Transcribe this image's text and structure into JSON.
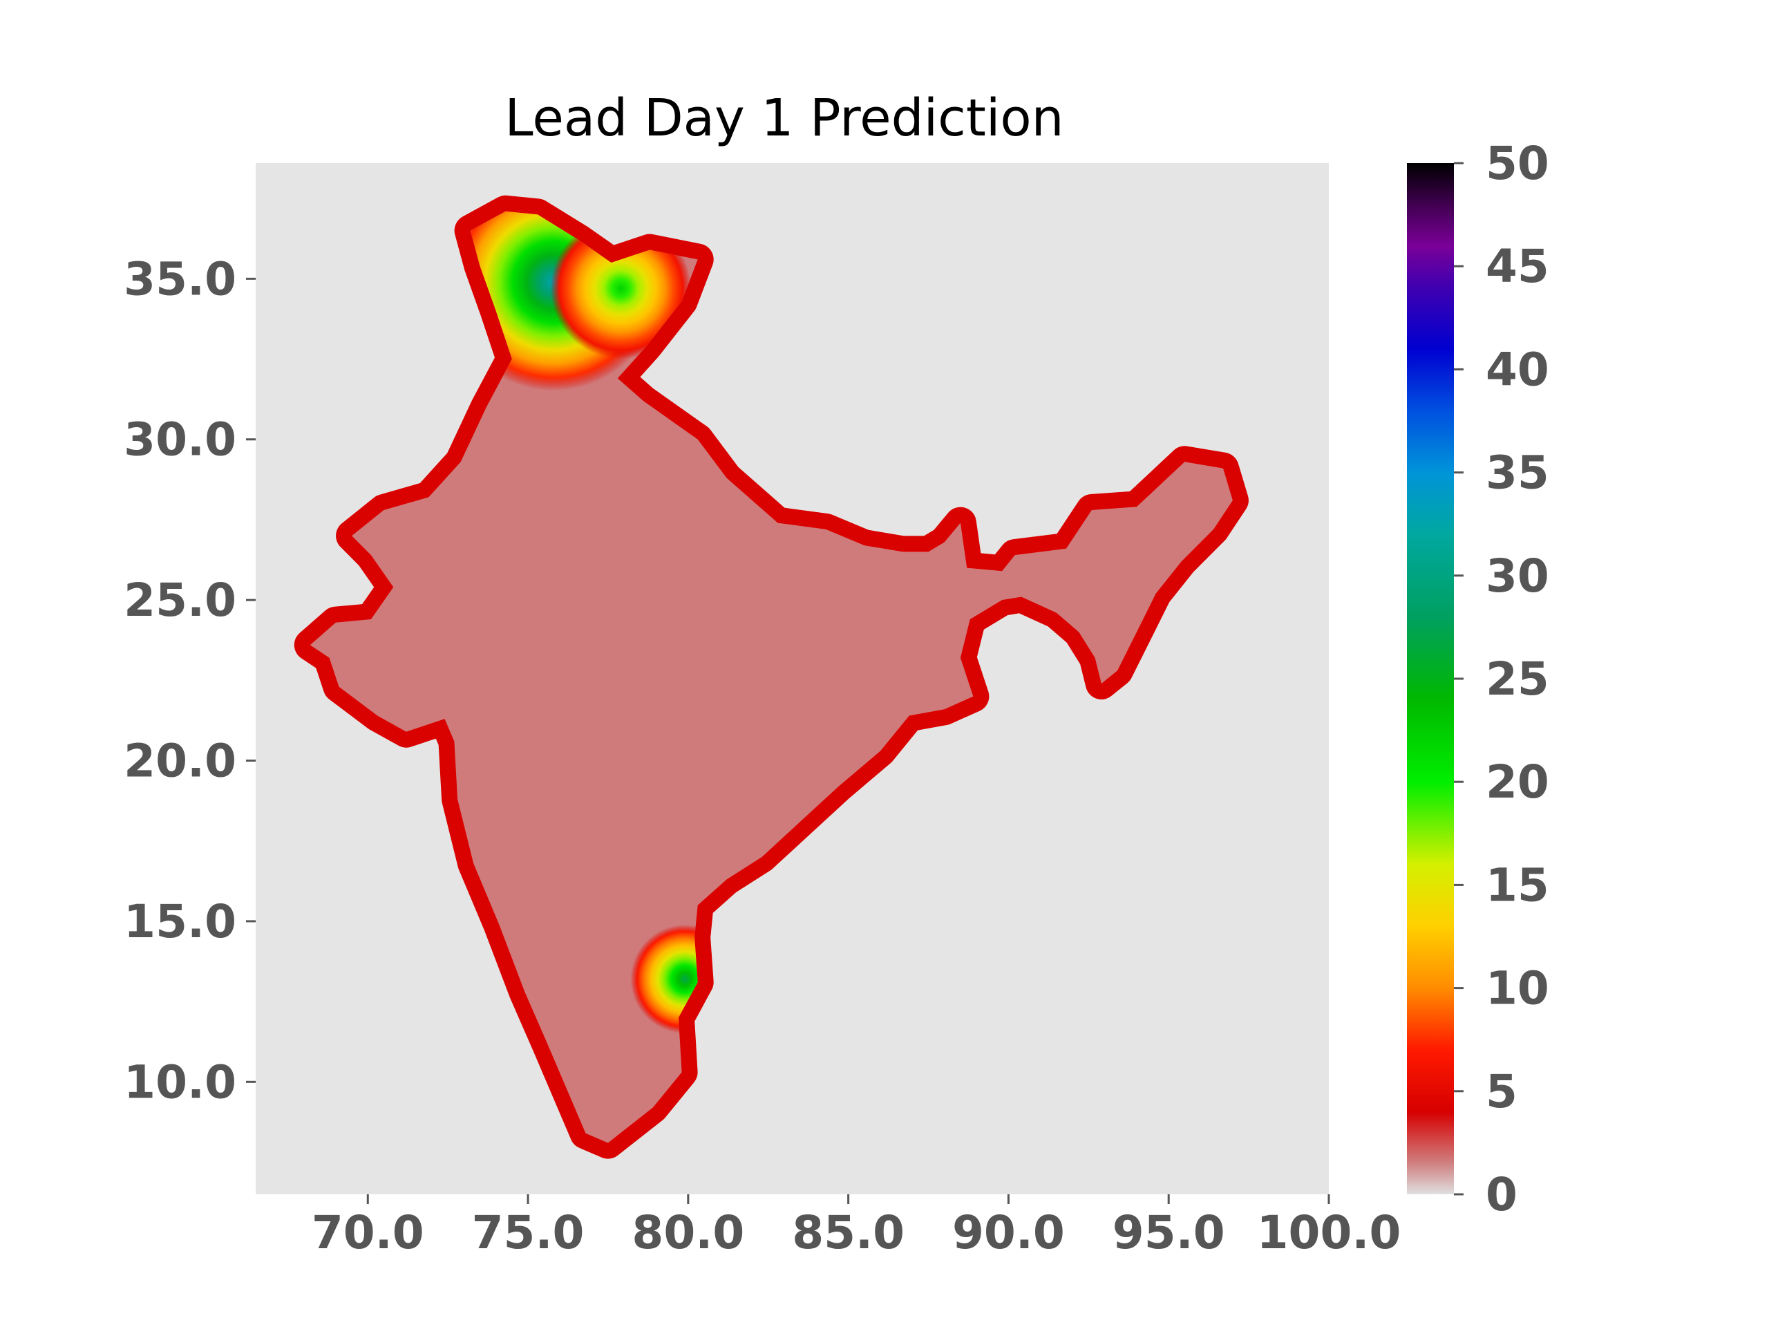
{
  "chart_data": {
    "type": "heatmap",
    "title": "Lead Day 1 Prediction",
    "xlabel": "",
    "ylabel": "",
    "xlim": [
      66.5,
      100.0
    ],
    "ylim": [
      6.5,
      38.6
    ],
    "x_ticks": [
      {
        "value": 70,
        "label": "70.0"
      },
      {
        "value": 75,
        "label": "75.0"
      },
      {
        "value": 80,
        "label": "80.0"
      },
      {
        "value": 85,
        "label": "85.0"
      },
      {
        "value": 90,
        "label": "90.0"
      },
      {
        "value": 95,
        "label": "95.0"
      },
      {
        "value": 100,
        "label": "100.0"
      }
    ],
    "y_ticks": [
      {
        "value": 10,
        "label": "10.0"
      },
      {
        "value": 15,
        "label": "15.0"
      },
      {
        "value": 20,
        "label": "20.0"
      },
      {
        "value": 25,
        "label": "25.0"
      },
      {
        "value": 30,
        "label": "30.0"
      },
      {
        "value": 35,
        "label": "35.0"
      }
    ],
    "grid": false,
    "background_color": "#e5e5e5",
    "colorbar": {
      "range": [
        0,
        50
      ],
      "ticks": [
        {
          "value": 0,
          "label": "0"
        },
        {
          "value": 5,
          "label": "5"
        },
        {
          "value": 10,
          "label": "10"
        },
        {
          "value": 15,
          "label": "15"
        },
        {
          "value": 20,
          "label": "20"
        },
        {
          "value": 25,
          "label": "25"
        },
        {
          "value": 30,
          "label": "30"
        },
        {
          "value": 35,
          "label": "35"
        },
        {
          "value": 40,
          "label": "40"
        },
        {
          "value": 45,
          "label": "45"
        },
        {
          "value": 50,
          "label": "50"
        }
      ],
      "color_stops": [
        {
          "value": 0,
          "color": "#e0e0e0"
        },
        {
          "value": 1.5,
          "color": "#d08080"
        },
        {
          "value": 4,
          "color": "#d60000"
        },
        {
          "value": 7,
          "color": "#ff1a00"
        },
        {
          "value": 10,
          "color": "#ff8c00"
        },
        {
          "value": 13,
          "color": "#ffd000"
        },
        {
          "value": 16,
          "color": "#d4f000"
        },
        {
          "value": 20,
          "color": "#00ee00"
        },
        {
          "value": 24,
          "color": "#00b800"
        },
        {
          "value": 28,
          "color": "#00a060"
        },
        {
          "value": 32,
          "color": "#00a8a0"
        },
        {
          "value": 35,
          "color": "#0094d8"
        },
        {
          "value": 38,
          "color": "#0050e0"
        },
        {
          "value": 41,
          "color": "#0000d0"
        },
        {
          "value": 44,
          "color": "#4000b0"
        },
        {
          "value": 46,
          "color": "#7a0098"
        },
        {
          "value": 48,
          "color": "#400050"
        },
        {
          "value": 50,
          "color": "#000000"
        }
      ]
    },
    "regions": [
      {
        "name": "india-mainland",
        "value": 1.6,
        "coast_value": 4.2,
        "outline": [
          [
            73.7,
            31.0
          ],
          [
            74.5,
            32.5
          ],
          [
            74.0,
            34.0
          ],
          [
            73.5,
            35.4
          ],
          [
            73.2,
            36.5
          ],
          [
            74.3,
            37.1
          ],
          [
            75.3,
            37.0
          ],
          [
            76.6,
            36.2
          ],
          [
            77.6,
            35.5
          ],
          [
            78.8,
            35.9
          ],
          [
            80.3,
            35.6
          ],
          [
            79.8,
            34.3
          ],
          [
            78.7,
            32.9
          ],
          [
            77.8,
            31.9
          ],
          [
            78.6,
            31.2
          ],
          [
            80.3,
            30.0
          ],
          [
            81.2,
            28.8
          ],
          [
            82.8,
            27.4
          ],
          [
            84.3,
            27.2
          ],
          [
            85.5,
            26.7
          ],
          [
            86.7,
            26.5
          ],
          [
            87.5,
            26.5
          ],
          [
            88.0,
            26.8
          ],
          [
            88.5,
            27.4
          ],
          [
            88.7,
            26.0
          ],
          [
            89.8,
            25.9
          ],
          [
            90.2,
            26.4
          ],
          [
            91.8,
            26.6
          ],
          [
            92.6,
            27.8
          ],
          [
            94.0,
            27.9
          ],
          [
            95.5,
            29.3
          ],
          [
            96.7,
            29.1
          ],
          [
            97.0,
            28.1
          ],
          [
            96.4,
            27.2
          ],
          [
            95.4,
            26.2
          ],
          [
            94.6,
            25.2
          ],
          [
            94.0,
            24.0
          ],
          [
            93.4,
            22.8
          ],
          [
            92.9,
            22.4
          ],
          [
            92.7,
            23.2
          ],
          [
            92.2,
            24.0
          ],
          [
            91.5,
            24.6
          ],
          [
            90.4,
            25.1
          ],
          [
            89.8,
            25.0
          ],
          [
            88.8,
            24.4
          ],
          [
            88.5,
            23.2
          ],
          [
            88.9,
            22.0
          ],
          [
            88.0,
            21.6
          ],
          [
            86.9,
            21.4
          ],
          [
            86.0,
            20.3
          ],
          [
            84.7,
            19.2
          ],
          [
            83.5,
            18.1
          ],
          [
            82.3,
            17.0
          ],
          [
            81.2,
            16.3
          ],
          [
            80.3,
            15.5
          ],
          [
            80.2,
            14.5
          ],
          [
            80.3,
            13.1
          ],
          [
            79.7,
            12.0
          ],
          [
            79.8,
            10.3
          ],
          [
            78.9,
            9.2
          ],
          [
            77.5,
            8.1
          ],
          [
            76.8,
            8.4
          ],
          [
            76.2,
            9.8
          ],
          [
            75.6,
            11.2
          ],
          [
            74.9,
            12.8
          ],
          [
            74.1,
            14.9
          ],
          [
            73.3,
            16.8
          ],
          [
            72.8,
            18.8
          ],
          [
            72.7,
            20.6
          ],
          [
            72.4,
            21.3
          ],
          [
            71.2,
            20.9
          ],
          [
            70.3,
            21.4
          ],
          [
            69.1,
            22.3
          ],
          [
            68.8,
            23.2
          ],
          [
            68.2,
            23.6
          ],
          [
            69.0,
            24.3
          ],
          [
            70.1,
            24.4
          ],
          [
            70.8,
            25.4
          ],
          [
            70.1,
            26.4
          ],
          [
            69.5,
            27.0
          ],
          [
            70.5,
            27.8
          ],
          [
            71.9,
            28.2
          ],
          [
            72.9,
            29.3
          ],
          [
            73.7,
            31.0
          ]
        ]
      }
    ],
    "hotspots": [
      {
        "name": "kashmir-high",
        "lon": 75.8,
        "lat": 34.9,
        "value": 33,
        "radius": 3.4
      },
      {
        "name": "ladakh-ridge",
        "lon": 77.9,
        "lat": 34.7,
        "value": 22,
        "radius": 2.2
      },
      {
        "name": "southeast-coast-high",
        "lon": 79.9,
        "lat": 13.2,
        "value": 27,
        "radius": 1.7
      }
    ]
  }
}
